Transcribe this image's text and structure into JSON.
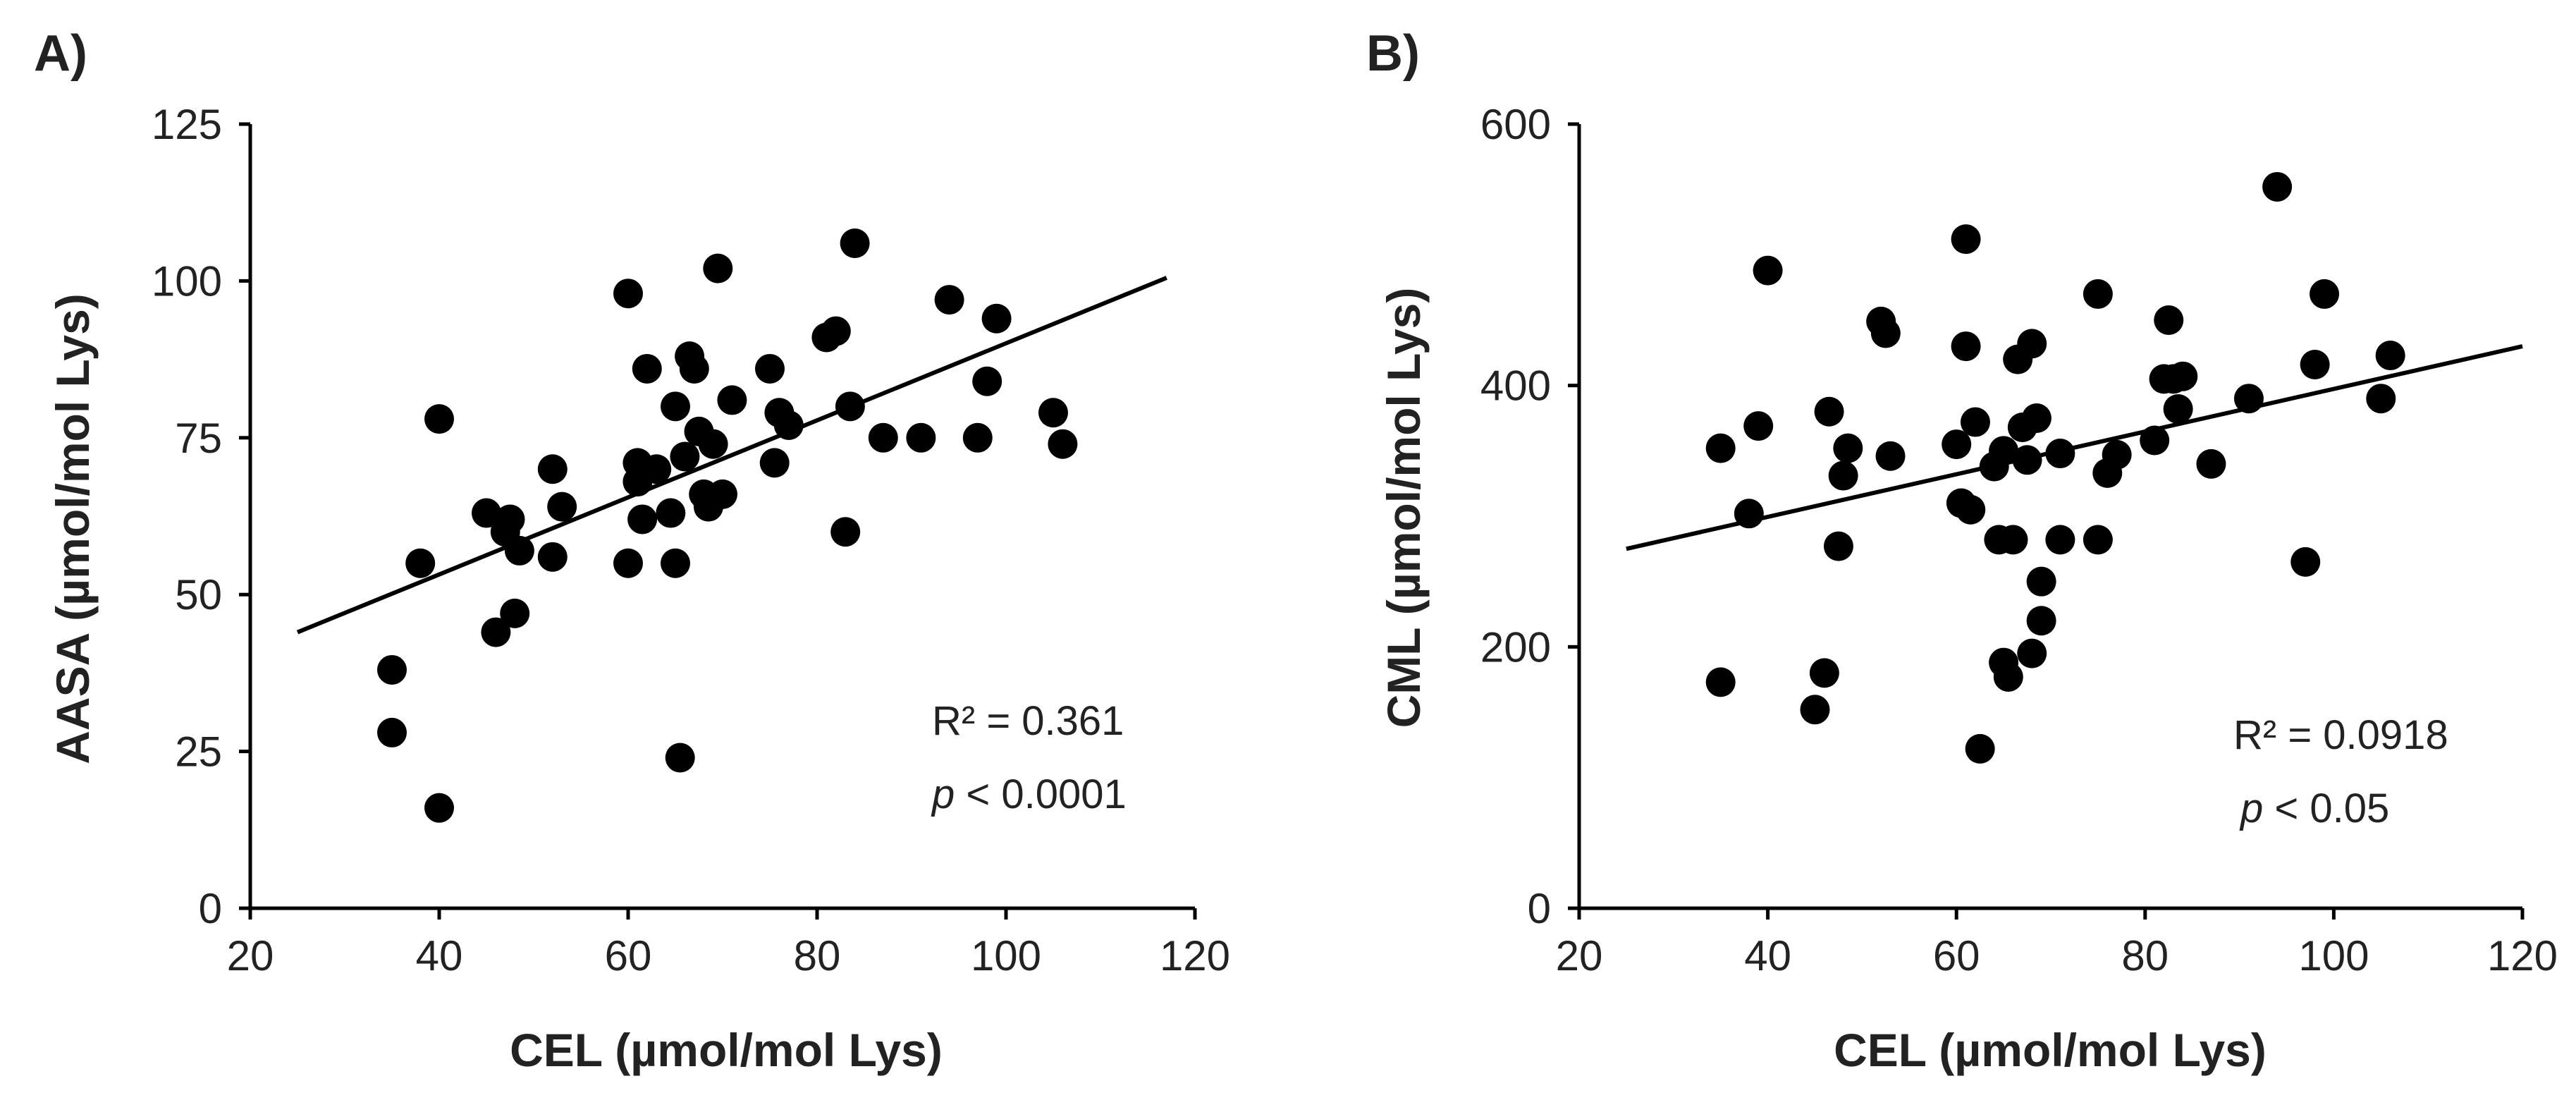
{
  "chart_data": [
    {
      "type": "scatter",
      "panel_label": "A)",
      "xlabel": "CEL (µmol/mol Lys)",
      "ylabel": "AASA  (µmol/mol Lys)",
      "xlim": [
        20,
        120
      ],
      "ylim": [
        0,
        125
      ],
      "x_ticks": [
        20,
        40,
        60,
        80,
        100,
        120
      ],
      "y_ticks": [
        0,
        25,
        50,
        75,
        100,
        125
      ],
      "x_tick_labels": [
        "20",
        "40",
        "60",
        "80",
        "100",
        "120"
      ],
      "y_tick_labels": [
        "0",
        "25",
        "50",
        "75",
        "100",
        "125"
      ],
      "r2_text": "R² = 0.361",
      "p_symbol": "p",
      "p_text": " < 0.0001",
      "trendline": {
        "x": [
          25,
          117
        ],
        "y": [
          44,
          100.5
        ]
      },
      "points": [
        {
          "x": 35,
          "y": 38
        },
        {
          "x": 35,
          "y": 28
        },
        {
          "x": 38,
          "y": 55
        },
        {
          "x": 40,
          "y": 78
        },
        {
          "x": 40,
          "y": 16
        },
        {
          "x": 45,
          "y": 63
        },
        {
          "x": 46,
          "y": 44
        },
        {
          "x": 47,
          "y": 60
        },
        {
          "x": 47.5,
          "y": 62
        },
        {
          "x": 48,
          "y": 47
        },
        {
          "x": 48.5,
          "y": 57
        },
        {
          "x": 52,
          "y": 70
        },
        {
          "x": 52,
          "y": 56
        },
        {
          "x": 53,
          "y": 64
        },
        {
          "x": 60,
          "y": 98
        },
        {
          "x": 60,
          "y": 55
        },
        {
          "x": 61,
          "y": 71
        },
        {
          "x": 61,
          "y": 68
        },
        {
          "x": 61.5,
          "y": 62
        },
        {
          "x": 62,
          "y": 86
        },
        {
          "x": 63,
          "y": 70
        },
        {
          "x": 64.5,
          "y": 63
        },
        {
          "x": 65,
          "y": 80
        },
        {
          "x": 65,
          "y": 55
        },
        {
          "x": 65.5,
          "y": 24
        },
        {
          "x": 66,
          "y": 72
        },
        {
          "x": 66.5,
          "y": 88
        },
        {
          "x": 67,
          "y": 86
        },
        {
          "x": 67.5,
          "y": 76
        },
        {
          "x": 68,
          "y": 66
        },
        {
          "x": 68.5,
          "y": 64
        },
        {
          "x": 69,
          "y": 74
        },
        {
          "x": 69.5,
          "y": 102
        },
        {
          "x": 70,
          "y": 66
        },
        {
          "x": 71,
          "y": 81
        },
        {
          "x": 75,
          "y": 86
        },
        {
          "x": 75.5,
          "y": 71
        },
        {
          "x": 76,
          "y": 79
        },
        {
          "x": 77,
          "y": 77
        },
        {
          "x": 81,
          "y": 91
        },
        {
          "x": 82,
          "y": 92
        },
        {
          "x": 83,
          "y": 60
        },
        {
          "x": 83.5,
          "y": 80
        },
        {
          "x": 84,
          "y": 106
        },
        {
          "x": 87,
          "y": 75
        },
        {
          "x": 91,
          "y": 75
        },
        {
          "x": 94,
          "y": 97
        },
        {
          "x": 97,
          "y": 75
        },
        {
          "x": 98,
          "y": 84
        },
        {
          "x": 99,
          "y": 94
        },
        {
          "x": 105,
          "y": 79
        },
        {
          "x": 106,
          "y": 74
        }
      ]
    },
    {
      "type": "scatter",
      "panel_label": "B)",
      "xlabel": "CEL (µmol/mol Lys)",
      "ylabel": "CML (µmol/mol Lys)",
      "xlim": [
        20,
        120
      ],
      "ylim": [
        0,
        600
      ],
      "x_ticks": [
        20,
        40,
        60,
        80,
        100,
        120
      ],
      "y_ticks": [
        0,
        200,
        400,
        600
      ],
      "x_tick_labels": [
        "20",
        "40",
        "60",
        "80",
        "100",
        "120"
      ],
      "y_tick_labels": [
        "0",
        "200",
        "400",
        "600"
      ],
      "r2_text": "R² = 0.0918",
      "p_symbol": "p",
      "p_text": " < 0.05",
      "trendline": {
        "x": [
          25,
          120
        ],
        "y": [
          275,
          430
        ]
      },
      "points": [
        {
          "x": 35,
          "y": 352
        },
        {
          "x": 35,
          "y": 173
        },
        {
          "x": 38,
          "y": 302
        },
        {
          "x": 39,
          "y": 369
        },
        {
          "x": 40,
          "y": 488
        },
        {
          "x": 45,
          "y": 152
        },
        {
          "x": 46,
          "y": 180
        },
        {
          "x": 46.5,
          "y": 380
        },
        {
          "x": 47.5,
          "y": 277
        },
        {
          "x": 48,
          "y": 331
        },
        {
          "x": 48.5,
          "y": 352
        },
        {
          "x": 52,
          "y": 449
        },
        {
          "x": 52.5,
          "y": 440
        },
        {
          "x": 53,
          "y": 346
        },
        {
          "x": 60,
          "y": 355
        },
        {
          "x": 60.5,
          "y": 310
        },
        {
          "x": 61,
          "y": 512
        },
        {
          "x": 61,
          "y": 430
        },
        {
          "x": 61.5,
          "y": 305
        },
        {
          "x": 62,
          "y": 372
        },
        {
          "x": 62.5,
          "y": 122
        },
        {
          "x": 64,
          "y": 338
        },
        {
          "x": 64.5,
          "y": 282
        },
        {
          "x": 65,
          "y": 350
        },
        {
          "x": 65,
          "y": 188
        },
        {
          "x": 65.5,
          "y": 177
        },
        {
          "x": 66,
          "y": 282
        },
        {
          "x": 66.5,
          "y": 420
        },
        {
          "x": 67,
          "y": 368
        },
        {
          "x": 67.5,
          "y": 343
        },
        {
          "x": 68,
          "y": 432
        },
        {
          "x": 68,
          "y": 195
        },
        {
          "x": 68.5,
          "y": 375
        },
        {
          "x": 69,
          "y": 250
        },
        {
          "x": 69,
          "y": 220
        },
        {
          "x": 71,
          "y": 348
        },
        {
          "x": 71,
          "y": 282
        },
        {
          "x": 75,
          "y": 470
        },
        {
          "x": 75,
          "y": 282
        },
        {
          "x": 76,
          "y": 333
        },
        {
          "x": 77,
          "y": 347
        },
        {
          "x": 81,
          "y": 358
        },
        {
          "x": 82,
          "y": 405
        },
        {
          "x": 82.5,
          "y": 450
        },
        {
          "x": 83,
          "y": 405
        },
        {
          "x": 83.5,
          "y": 382
        },
        {
          "x": 84,
          "y": 407
        },
        {
          "x": 87,
          "y": 340
        },
        {
          "x": 91,
          "y": 390
        },
        {
          "x": 94,
          "y": 552
        },
        {
          "x": 97,
          "y": 265
        },
        {
          "x": 98,
          "y": 416
        },
        {
          "x": 99,
          "y": 470
        },
        {
          "x": 105,
          "y": 390
        },
        {
          "x": 106,
          "y": 423
        }
      ]
    }
  ]
}
